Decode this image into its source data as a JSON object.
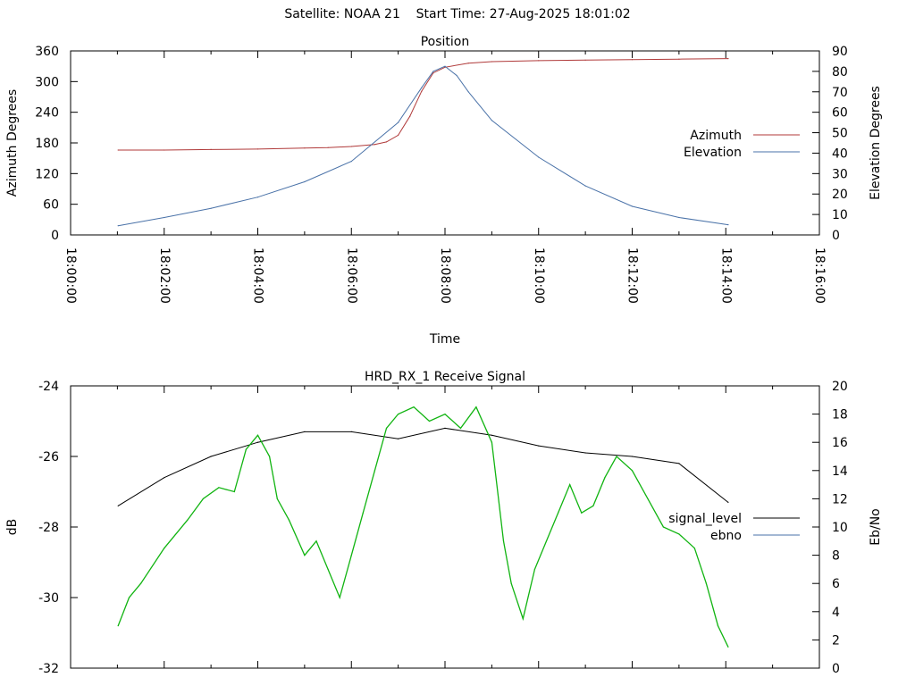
{
  "title": "Satellite: NOAA 21    Start Time: 27-Aug-2025 18:01:02",
  "colors": {
    "azimuth": "#b03a3a",
    "elevation": "#4a72a8",
    "signal_level": "#000000",
    "ebno_line": "#4a72a8",
    "ebno_fill": "#11b411"
  },
  "chart_data": [
    {
      "type": "line",
      "title": "Position",
      "xlabel": "Time",
      "ylabel": "Azimuth Degrees",
      "y2label": "Elevation Degrees",
      "xlim": [
        "18:00:00",
        "18:16:00"
      ],
      "ylim": [
        0,
        360
      ],
      "y2lim": [
        0,
        90
      ],
      "xticks": [
        "18:00:00",
        "18:02:00",
        "18:04:00",
        "18:06:00",
        "18:08:00",
        "18:10:00",
        "18:12:00",
        "18:14:00",
        "18:16:00"
      ],
      "yticks": [
        0,
        60,
        120,
        180,
        240,
        300,
        360
      ],
      "y2ticks": [
        0,
        10,
        20,
        30,
        40,
        50,
        60,
        70,
        80,
        90
      ],
      "legend": "right",
      "grid": false,
      "series": [
        {
          "name": "Azimuth",
          "axis": "y",
          "x": [
            61,
            120,
            180,
            240,
            300,
            330,
            360,
            390,
            405,
            420,
            435,
            450,
            465,
            480,
            510,
            540,
            600,
            660,
            720,
            780,
            843
          ],
          "y": [
            166,
            166,
            167,
            168,
            170,
            171,
            173,
            177,
            182,
            195,
            232,
            281,
            317,
            328,
            336,
            339,
            341,
            342,
            343,
            344,
            345
          ]
        },
        {
          "name": "Elevation",
          "axis": "y2",
          "x": [
            61,
            120,
            180,
            240,
            300,
            360,
            420,
            450,
            465,
            480,
            495,
            510,
            540,
            600,
            660,
            720,
            780,
            843
          ],
          "y": [
            4.5,
            8.5,
            13,
            18.5,
            26,
            36,
            55,
            72,
            80,
            82.5,
            78,
            70,
            56,
            38,
            24,
            14,
            8.5,
            5
          ]
        }
      ]
    },
    {
      "type": "line",
      "title": "HRD_RX_1 Receive Signal",
      "ylabel": "dB",
      "y2label": "Eb/No",
      "xlim": [
        "18:00:00",
        "18:16:00"
      ],
      "ylim": [
        -32,
        -24
      ],
      "y2lim": [
        0,
        20
      ],
      "yticks": [
        -32,
        -30,
        -28,
        -26,
        -24
      ],
      "y2ticks": [
        0,
        2,
        4,
        6,
        8,
        10,
        12,
        14,
        16,
        18,
        20
      ],
      "legend": "right",
      "grid": false,
      "series": [
        {
          "name": "signal_level",
          "axis": "y",
          "x": [
            61,
            120,
            180,
            240,
            300,
            360,
            420,
            480,
            540,
            600,
            660,
            720,
            780,
            843
          ],
          "y": [
            -27.4,
            -26.6,
            -26.0,
            -25.6,
            -25.3,
            -25.3,
            -25.5,
            -25.2,
            -25.4,
            -25.7,
            -25.9,
            -26.0,
            -26.2,
            -27.3
          ]
        },
        {
          "name": "ebno",
          "axis": "y2",
          "x": [
            61,
            75,
            90,
            120,
            150,
            170,
            190,
            210,
            225,
            240,
            255,
            265,
            280,
            300,
            315,
            330,
            345,
            360,
            375,
            390,
            405,
            420,
            440,
            460,
            480,
            500,
            520,
            540,
            555,
            565,
            580,
            595,
            610,
            625,
            640,
            655,
            670,
            685,
            700,
            720,
            740,
            760,
            780,
            800,
            815,
            830,
            843
          ],
          "y": [
            3,
            5,
            6,
            8.5,
            10.5,
            12,
            12.8,
            12.5,
            15.5,
            16.5,
            15,
            12,
            10.5,
            8,
            9,
            7,
            5,
            8,
            11,
            14,
            17,
            18,
            18.5,
            17.5,
            18,
            17,
            18.5,
            16,
            9,
            6,
            3.5,
            7,
            9,
            11,
            13,
            11,
            11.5,
            13.5,
            15,
            14,
            12,
            10,
            9.5,
            8.5,
            6,
            3,
            1.5
          ]
        }
      ]
    }
  ]
}
